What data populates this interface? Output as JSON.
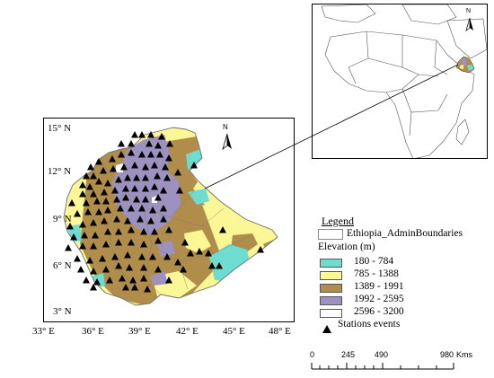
{
  "main_map": {
    "lat_labels": [
      "15° N",
      "12° N",
      "9° N",
      "6° N",
      "3° N"
    ],
    "lon_labels": [
      "33° E",
      "36° E",
      "39° E",
      "42° E",
      "45° E",
      "48° E"
    ],
    "north_arrow": "N"
  },
  "inset_map": {
    "north_arrow": "N"
  },
  "legend": {
    "title": "Legend",
    "boundary_label": "Ethiopia_AdminBoundaries",
    "elevation_title": "Elevation (m)",
    "classes": [
      {
        "label": "180 - 784",
        "color": "#6fdcd2"
      },
      {
        "label": "785 - 1388",
        "color": "#fbf696"
      },
      {
        "label": "1389 - 1991",
        "color": "#b08d4b"
      },
      {
        "label": "1992 - 2595",
        "color": "#9d92bf"
      },
      {
        "label": "2596 - 3200",
        "color": "#ffffff"
      }
    ],
    "stations_label": "Stations events",
    "stations_icon": "triangle-icon"
  },
  "scale_bar": {
    "ticks": [
      "0",
      "245",
      "490",
      "980"
    ],
    "unit": "Kms"
  }
}
